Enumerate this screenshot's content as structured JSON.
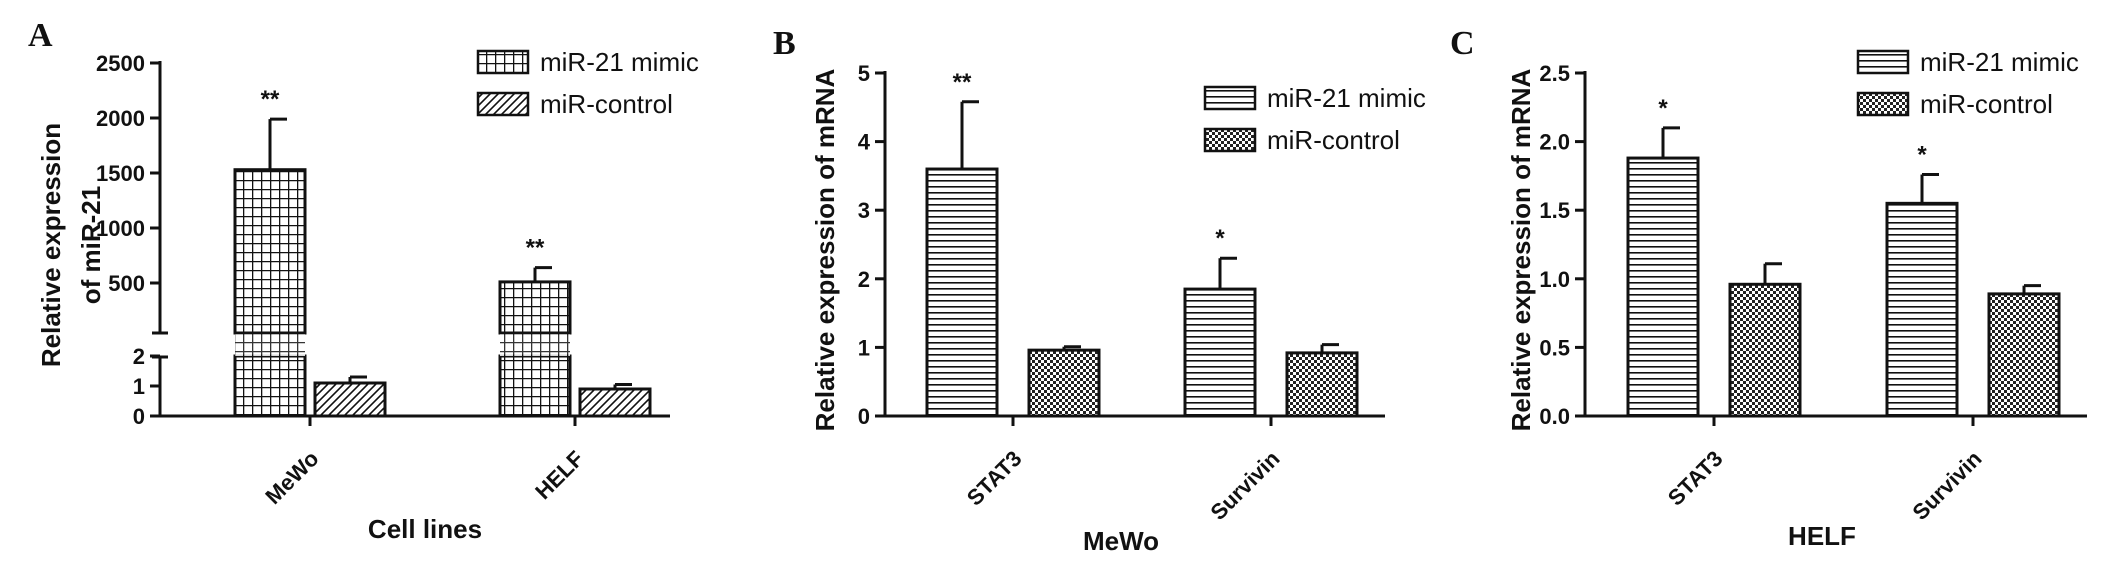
{
  "chart_data": [
    {
      "panel": "A",
      "type": "bar",
      "xlabel": "Cell lines",
      "ylabel": [
        "Relative expression",
        "of miR-21"
      ],
      "categories": [
        "MeWo",
        "HELF"
      ],
      "series": [
        {
          "name": "miR-21 mimic",
          "pattern": "grid",
          "values": [
            1530,
            510
          ],
          "errors": [
            460,
            130
          ],
          "sig": [
            "**",
            "**"
          ]
        },
        {
          "name": "miR-control",
          "pattern": "diag",
          "values": [
            1.1,
            0.9
          ],
          "errors": [
            0.2,
            0.15
          ],
          "sig": [
            "",
            ""
          ]
        }
      ],
      "y_axis_broken": true,
      "y_lower_range": [
        0,
        2
      ],
      "y_upper_range": [
        0,
        2500
      ],
      "yticks_lower": [
        "0",
        "1",
        "2"
      ],
      "yticks_upper": [
        "500",
        "1000",
        "1500",
        "2000",
        "2500"
      ],
      "legend": "top-right",
      "grid": false
    },
    {
      "panel": "B",
      "type": "bar",
      "xlabel": "MeWo",
      "ylabel": [
        "Relative expression of mRNA"
      ],
      "categories": [
        "STAT3",
        "Survivin"
      ],
      "series": [
        {
          "name": "miR-21 mimic",
          "pattern": "hstripe",
          "values": [
            3.6,
            1.85
          ],
          "errors": [
            0.98,
            0.45
          ],
          "sig": [
            "**",
            "*"
          ]
        },
        {
          "name": "miR-control",
          "pattern": "check",
          "values": [
            0.96,
            0.92
          ],
          "errors": [
            0.05,
            0.12
          ],
          "sig": [
            "",
            ""
          ]
        }
      ],
      "ylim": [
        0,
        5
      ],
      "yticks": [
        "0",
        "1",
        "2",
        "3",
        "4",
        "5"
      ],
      "legend": "top-right",
      "grid": false
    },
    {
      "panel": "C",
      "type": "bar",
      "xlabel": "HELF",
      "ylabel": [
        "Relative expression of mRNA"
      ],
      "categories": [
        "STAT3",
        "Survivin"
      ],
      "series": [
        {
          "name": "miR-21 mimic",
          "pattern": "hstripe",
          "values": [
            1.88,
            1.55
          ],
          "errors": [
            0.22,
            0.21
          ],
          "sig": [
            "*",
            "*"
          ]
        },
        {
          "name": "miR-control",
          "pattern": "check",
          "values": [
            0.96,
            0.89
          ],
          "errors": [
            0.15,
            0.06
          ],
          "sig": [
            "",
            ""
          ]
        }
      ],
      "ylim": [
        0,
        2.5
      ],
      "yticks": [
        "0.0",
        "0.5",
        "1.0",
        "1.5",
        "2.0",
        "2.5"
      ],
      "legend": "top-right",
      "grid": false
    }
  ]
}
